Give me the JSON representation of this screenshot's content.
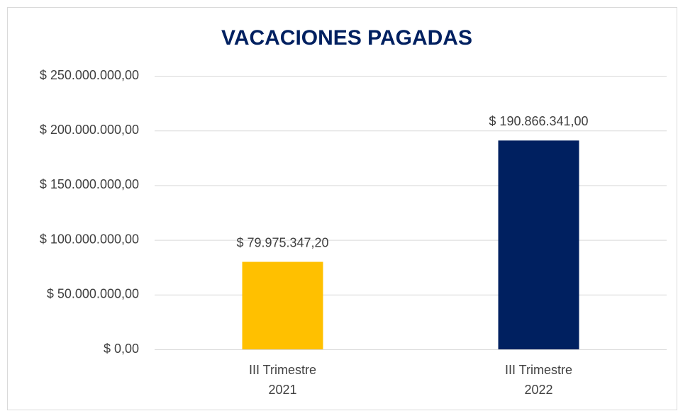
{
  "chart_data": {
    "type": "bar",
    "title": "VACACIONES PAGADAS",
    "categories": [
      [
        "III Trimestre",
        "2021"
      ],
      [
        "III Trimestre",
        "2022"
      ]
    ],
    "values": [
      79975347.2,
      190866341
    ],
    "value_labels": [
      "$ 79.975.347,20",
      "$ 190.866.341,00"
    ],
    "colors": [
      "#ffc000",
      "#002060"
    ],
    "ylim": [
      0,
      250000000
    ],
    "yticks": [
      {
        "value": 0,
        "label": "$ 0,00"
      },
      {
        "value": 50000000,
        "label": "$ 50.000.000,00"
      },
      {
        "value": 100000000,
        "label": "$ 100.000.000,00"
      },
      {
        "value": 150000000,
        "label": "$ 150.000.000,00"
      },
      {
        "value": 200000000,
        "label": "$ 200.000.000,00"
      },
      {
        "value": 250000000,
        "label": "$ 250.000.000,00"
      }
    ],
    "grid": true
  }
}
